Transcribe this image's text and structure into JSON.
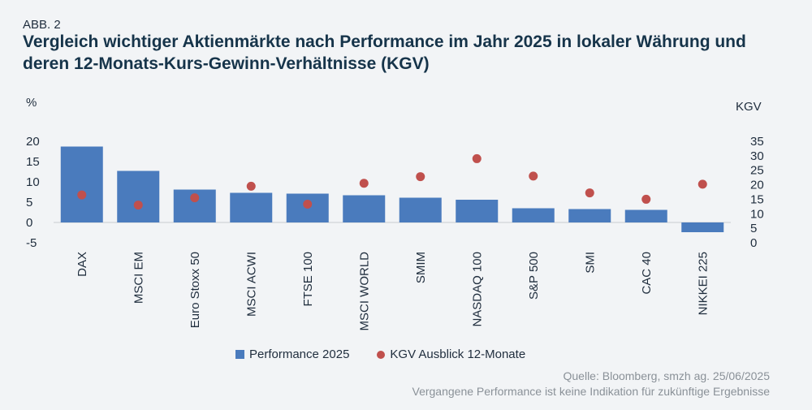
{
  "header": {
    "figure_label": "ABB. 2",
    "title": "Vergleich wichtiger Aktienmärkte nach Performance im Jahr 2025 in lokaler Währung und deren 12-Monats-Kurs-Gewinn-Verhältnisse (KGV)"
  },
  "chart_data": {
    "type": "bar",
    "categories": [
      "DAX",
      "MSCI EM",
      "Euro Stoxx 50",
      "MSCI ACWI",
      "FTSE 100",
      "MSCI WORLD",
      "SMIM",
      "NASDAQ 100",
      "S&P 500",
      "SMI",
      "CAC 40",
      "NIKKEI 225"
    ],
    "series": [
      {
        "name": "Performance 2025",
        "axis": "left",
        "kind": "bar",
        "color": "#4a7bbd",
        "values": [
          18.7,
          12.7,
          8.1,
          7.3,
          7.1,
          6.7,
          6.1,
          5.6,
          3.5,
          3.3,
          3.1,
          -2.4
        ]
      },
      {
        "name": "KGV Ausblick 12-Monate",
        "axis": "right",
        "kind": "scatter",
        "color": "#c0504d",
        "values": [
          16.5,
          13.0,
          15.5,
          19.5,
          13.3,
          20.5,
          22.8,
          29.0,
          23.0,
          17.2,
          15.0,
          20.2
        ]
      }
    ],
    "y_left": {
      "label": "%",
      "min": -5,
      "max": 20,
      "ticks": [
        20,
        15,
        10,
        5,
        0,
        -5
      ]
    },
    "y_right": {
      "label": "KGV",
      "min": 0,
      "max": 35,
      "ticks": [
        35,
        30,
        25,
        20,
        15,
        10,
        5,
        0
      ]
    },
    "legend_position": "bottom"
  },
  "legend": {
    "bar_label": "Performance 2025",
    "dot_label": "KGV Ausblick 12-Monate"
  },
  "source": {
    "line1": "Quelle: Bloomberg, smzh ag. 25/06/2025",
    "line2": "Vergangene Performance ist keine Indikation für zukünftige Ergebnisse"
  }
}
